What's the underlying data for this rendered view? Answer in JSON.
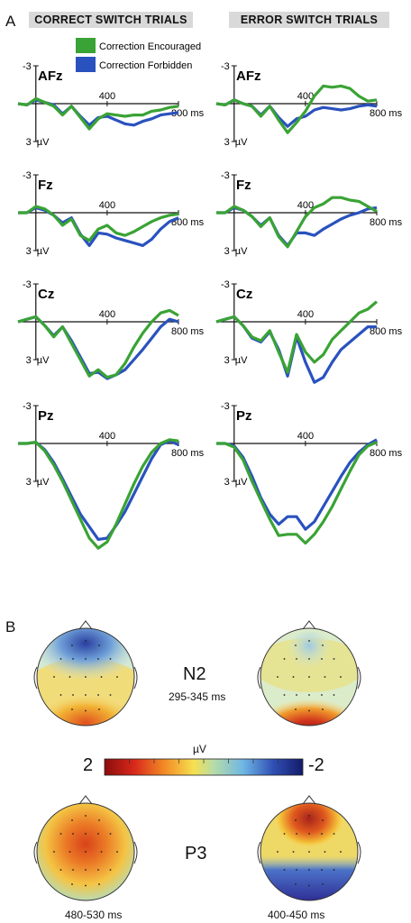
{
  "panel_a_label": "A",
  "panel_b_label": "B",
  "headers": {
    "left": "CORRECT SWITCH TRIALS",
    "right": "ERROR SWITCH TRIALS"
  },
  "legend": [
    {
      "label": "Correction Encouraged",
      "color": "#3aa335"
    },
    {
      "label": "Correction Forbidden",
      "color": "#2a52be"
    }
  ],
  "axis": {
    "top_tick": "-3",
    "bottom_tick": "3",
    "unit": "µV",
    "mid_tick": "400",
    "end_tick": "800 ms"
  },
  "chart_data": {
    "type": "line",
    "x_unit": "ms",
    "xlim": [
      -100,
      800
    ],
    "ylim": [
      -3,
      3
    ],
    "ylabel": "µV",
    "y_inverted": true,
    "x": [
      -100,
      -50,
      0,
      50,
      100,
      150,
      200,
      250,
      300,
      350,
      400,
      450,
      500,
      550,
      600,
      650,
      700,
      750,
      800
    ],
    "series_names": [
      "Correction Encouraged",
      "Correction Forbidden"
    ],
    "panels": [
      {
        "condition": "CORRECT SWITCH TRIALS",
        "electrode": "AFz",
        "encouraged": [
          0,
          0.1,
          -0.4,
          -0.1,
          0.2,
          0.9,
          0.2,
          1.1,
          2.0,
          1.2,
          0.8,
          0.9,
          1.0,
          0.9,
          0.9,
          0.6,
          0.5,
          0.3,
          0.2
        ],
        "forbidden": [
          0,
          0.1,
          -0.3,
          -0.1,
          0.1,
          0.8,
          0.2,
          1.0,
          1.7,
          1.1,
          1.0,
          1.3,
          1.6,
          1.7,
          1.4,
          1.2,
          0.9,
          0.8,
          0.7
        ]
      },
      {
        "condition": "ERROR SWITCH TRIALS",
        "electrode": "AFz",
        "encouraged": [
          0,
          0.1,
          -0.3,
          0,
          0.2,
          1.0,
          0.2,
          1.3,
          2.3,
          1.5,
          0.6,
          -0.6,
          -1.4,
          -1.3,
          -1.4,
          -1.2,
          -0.6,
          -0.2,
          -0.3
        ],
        "forbidden": [
          0,
          0.1,
          -0.3,
          0,
          0.2,
          0.9,
          0.2,
          1.1,
          1.8,
          1.2,
          1.0,
          0.5,
          0.3,
          0.4,
          0.5,
          0.4,
          0.2,
          0.1,
          0.2
        ]
      },
      {
        "condition": "CORRECT SWITCH TRIALS",
        "electrode": "Fz",
        "encouraged": [
          0,
          0,
          -0.5,
          -0.3,
          0.2,
          1.0,
          0.5,
          1.8,
          2.2,
          1.3,
          1.0,
          1.6,
          1.8,
          1.5,
          1.1,
          0.7,
          0.4,
          0.2,
          0.1
        ],
        "forbidden": [
          0,
          0,
          -0.4,
          -0.2,
          0.2,
          0.8,
          0.4,
          1.7,
          2.6,
          1.6,
          1.7,
          2.0,
          2.2,
          2.4,
          2.6,
          2.1,
          1.3,
          0.7,
          0.4
        ]
      },
      {
        "condition": "ERROR SWITCH TRIALS",
        "electrode": "Fz",
        "encouraged": [
          0,
          0,
          -0.5,
          -0.2,
          0.3,
          1.1,
          0.4,
          1.9,
          2.7,
          1.5,
          0.3,
          -0.4,
          -0.7,
          -1.2,
          -1.2,
          -1.0,
          -0.9,
          -0.5,
          -0.1
        ],
        "forbidden": [
          0,
          0,
          -0.4,
          -0.2,
          0.3,
          1.0,
          0.4,
          1.8,
          2.6,
          1.6,
          1.6,
          1.8,
          1.3,
          0.9,
          0.5,
          0.2,
          0.0,
          -0.3,
          -0.4
        ]
      },
      {
        "condition": "CORRECT SWITCH TRIALS",
        "electrode": "Cz",
        "encouraged": [
          0,
          -0.2,
          -0.4,
          0.3,
          1.2,
          0.4,
          1.7,
          3.0,
          4.3,
          3.8,
          4.4,
          4.2,
          3.3,
          2.0,
          0.9,
          0.0,
          -0.7,
          -0.9,
          -0.5
        ],
        "forbidden": [
          0,
          -0.2,
          -0.4,
          0.3,
          1.1,
          0.4,
          1.5,
          2.8,
          4.1,
          4.0,
          4.5,
          4.2,
          3.8,
          3.0,
          2.2,
          1.3,
          0.4,
          -0.2,
          0.0
        ]
      },
      {
        "condition": "ERROR SWITCH TRIALS",
        "electrode": "Cz",
        "encouraged": [
          0,
          -0.2,
          -0.4,
          0.3,
          1.2,
          1.5,
          0.7,
          2.4,
          4.0,
          1.0,
          2.4,
          3.2,
          2.6,
          1.4,
          0.7,
          0.0,
          -0.7,
          -1.0,
          -1.6
        ],
        "forbidden": [
          0,
          -0.2,
          -0.4,
          0.3,
          1.3,
          1.6,
          0.8,
          2.2,
          4.3,
          1.2,
          3.2,
          4.8,
          4.4,
          3.2,
          2.2,
          1.6,
          1.0,
          0.4,
          0.4
        ]
      },
      {
        "condition": "CORRECT SWITCH TRIALS",
        "electrode": "Pz",
        "encouraged": [
          0,
          0,
          -0.1,
          0.6,
          1.7,
          3.0,
          4.5,
          6.0,
          7.5,
          8.3,
          7.8,
          6.4,
          4.8,
          3.2,
          1.8,
          0.7,
          0,
          -0.3,
          -0.2
        ],
        "forbidden": [
          0,
          0,
          -0.1,
          0.5,
          1.5,
          2.8,
          4.2,
          5.6,
          6.6,
          7.6,
          7.5,
          6.5,
          5.4,
          4.0,
          2.6,
          1.2,
          0.1,
          -0.2,
          0.1
        ]
      },
      {
        "condition": "ERROR SWITCH TRIALS",
        "electrode": "Pz",
        "encouraged": [
          0,
          0,
          0.3,
          1.3,
          3.0,
          4.5,
          6.0,
          7.3,
          7.2,
          7.2,
          7.9,
          7.2,
          6.2,
          5.0,
          3.6,
          2.2,
          0.9,
          0.2,
          -0.1
        ],
        "forbidden": [
          0,
          0,
          0.2,
          1.1,
          2.6,
          4.3,
          5.6,
          6.4,
          5.8,
          5.8,
          6.8,
          6.2,
          5.0,
          3.8,
          2.6,
          1.5,
          0.7,
          0.1,
          -0.3
        ]
      }
    ]
  },
  "topo": {
    "n2_label": "N2",
    "n2_window": "295-345 ms",
    "p3_label": "P3",
    "p3_left_window": "480-530 ms",
    "p3_right_window": "400-450 ms",
    "colorbar_unit": "µV",
    "colorbar_min_label": "2",
    "colorbar_max_label": "-2"
  }
}
